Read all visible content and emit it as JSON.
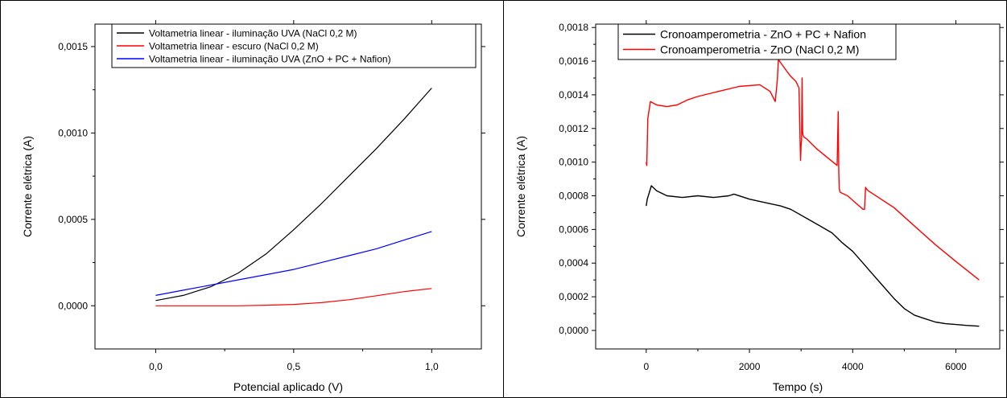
{
  "chart_data": [
    {
      "type": "line",
      "title": "",
      "xlabel": "Potencial aplicado (V)",
      "ylabel": "Corrente elétrica (A)",
      "xlim": [
        -0.22,
        1.18
      ],
      "ylim": [
        -0.00025,
        0.00163
      ],
      "x_ticks": [
        0.0,
        0.5,
        1.0
      ],
      "x_tick_labels": [
        "0,0",
        "0,5",
        "1,0"
      ],
      "y_ticks": [
        0.0,
        0.0005,
        0.001,
        0.0015
      ],
      "y_tick_labels": [
        "0,0000",
        "0,0005",
        "0,0010",
        "0,0015"
      ],
      "grid": false,
      "legend_position": "top-right",
      "series": [
        {
          "name": "Voltametria linear - iluminação UVA (NaCl 0,2 M)",
          "color": "#000000",
          "x": [
            0.0,
            0.1,
            0.2,
            0.3,
            0.4,
            0.5,
            0.6,
            0.7,
            0.8,
            0.9,
            1.0
          ],
          "y": [
            3e-05,
            6e-05,
            0.00011,
            0.00019,
            0.0003,
            0.00044,
            0.00059,
            0.00075,
            0.00091,
            0.00108,
            0.00126
          ]
        },
        {
          "name": "Voltametria linear - escuro (NaCl 0,2 M)",
          "color": "#ff0000",
          "x": [
            0.0,
            0.1,
            0.2,
            0.3,
            0.4,
            0.5,
            0.6,
            0.7,
            0.8,
            0.9,
            1.0
          ],
          "y": [
            0.0,
            0.0,
            0.0,
            0.0,
            3e-06,
            8e-06,
            1.8e-05,
            3.5e-05,
            5.8e-05,
            8.2e-05,
            0.0001
          ]
        },
        {
          "name": "Voltametria linear - iluminação UVA (ZnO + PC + Nafion)",
          "color": "#0000ff",
          "x": [
            0.0,
            0.1,
            0.2,
            0.3,
            0.4,
            0.5,
            0.6,
            0.7,
            0.8,
            0.9,
            1.0
          ],
          "y": [
            6e-05,
            9e-05,
            0.00012,
            0.00015,
            0.00018,
            0.00021,
            0.00025,
            0.00029,
            0.00033,
            0.00038,
            0.00043
          ]
        }
      ]
    },
    {
      "type": "line",
      "title": "",
      "xlabel": "Tempo (s)",
      "ylabel": "Corrente elétrica (A)",
      "xlim": [
        -980,
        6850
      ],
      "ylim": [
        -0.00011,
        0.00182
      ],
      "x_ticks": [
        0,
        2000,
        4000,
        6000
      ],
      "x_tick_labels": [
        "0",
        "2000",
        "4000",
        "6000"
      ],
      "y_ticks": [
        0.0,
        0.0002,
        0.0004,
        0.0006,
        0.0008,
        0.001,
        0.0012,
        0.0014,
        0.0016,
        0.0018
      ],
      "y_tick_labels": [
        "0,0000",
        "0,0002",
        "0,0004",
        "0,0006",
        "0,0008",
        "0,0010",
        "0,0012",
        "0,0014",
        "0,0016",
        "0,0018"
      ],
      "grid": false,
      "legend_position": "top-left",
      "series": [
        {
          "name": "Cronoamperometria - ZnO + PC + Nafion",
          "color": "#000000",
          "x": [
            0,
            20,
            100,
            200,
            400,
            700,
            1000,
            1300,
            1600,
            1700,
            2000,
            2300,
            2600,
            2800,
            3200,
            3600,
            3800,
            4000,
            4200,
            4400,
            4600,
            4800,
            5000,
            5200,
            5400,
            5600,
            5800,
            6000,
            6200,
            6450
          ],
          "y": [
            0.00074,
            0.00078,
            0.00086,
            0.00083,
            0.0008,
            0.00079,
            0.0008,
            0.00079,
            0.0008,
            0.00081,
            0.00078,
            0.00076,
            0.00074,
            0.00072,
            0.00065,
            0.00058,
            0.00052,
            0.00047,
            0.0004,
            0.00033,
            0.00026,
            0.00019,
            0.00013,
            9e-05,
            7e-05,
            5e-05,
            4e-05,
            3.5e-05,
            3e-05,
            2.5e-05
          ]
        },
        {
          "name": "Cronoamperometria - ZnO (NaCl 0,2 M)",
          "color": "#ff0000",
          "x": [
            0,
            10,
            30,
            80,
            200,
            400,
            600,
            800,
            1000,
            1400,
            1800,
            2200,
            2400,
            2500,
            2540,
            2560,
            2700,
            2800,
            2900,
            2960,
            2980,
            2990,
            3000,
            3010,
            3020,
            3030,
            3040,
            3050,
            3100,
            3300,
            3500,
            3700,
            3720,
            3730,
            3740,
            3760,
            3900,
            4200,
            4230,
            4250,
            4270,
            4300,
            4500,
            4800,
            5200,
            5600,
            6000,
            6450
          ],
          "y": [
            0.001,
            0.00098,
            0.00126,
            0.00136,
            0.00134,
            0.00133,
            0.00134,
            0.00137,
            0.00139,
            0.00142,
            0.00145,
            0.00146,
            0.00142,
            0.00136,
            0.00149,
            0.00161,
            0.00155,
            0.00151,
            0.00148,
            0.00144,
            0.00114,
            0.00101,
            0.0011,
            0.00113,
            0.0015,
            0.00118,
            0.00116,
            0.00115,
            0.00114,
            0.00108,
            0.00103,
            0.00098,
            0.0013,
            0.00095,
            0.00084,
            0.00082,
            0.0008,
            0.00072,
            0.00072,
            0.00085,
            0.00084,
            0.00083,
            0.00079,
            0.00073,
            0.00062,
            0.00051,
            0.00041,
            0.0003
          ]
        }
      ]
    }
  ]
}
